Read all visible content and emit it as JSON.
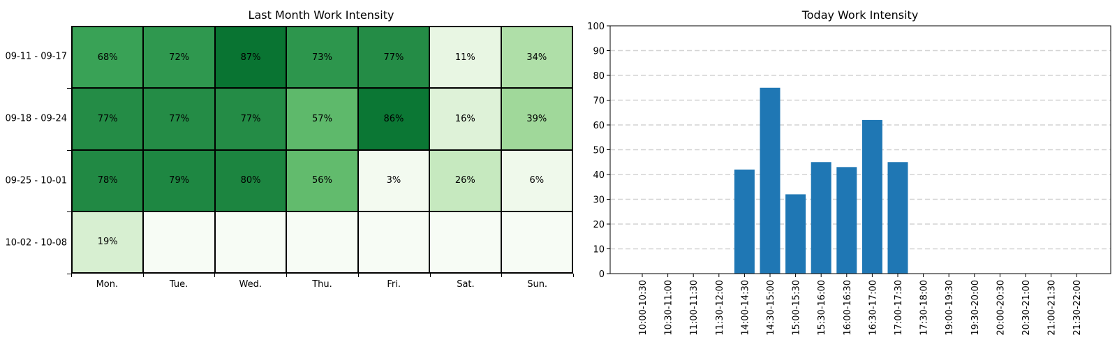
{
  "chart_data": [
    {
      "type": "heatmap",
      "title": "Last Month Work Intensity",
      "rows": [
        "09-11 - 09-17",
        "09-18 - 09-24",
        "09-25 - 10-01",
        "10-02 - 10-08"
      ],
      "columns": [
        "Mon.",
        "Tue.",
        "Wed.",
        "Thu.",
        "Fri.",
        "Sat.",
        "Sun."
      ],
      "values": [
        [
          68,
          72,
          87,
          73,
          77,
          11,
          34
        ],
        [
          77,
          77,
          77,
          57,
          86,
          16,
          39
        ],
        [
          78,
          79,
          80,
          56,
          3,
          26,
          6
        ],
        [
          19,
          null,
          null,
          null,
          null,
          null,
          null
        ]
      ],
      "value_suffix": "%",
      "colormap": "Greens"
    },
    {
      "type": "bar",
      "title": "Today Work Intensity",
      "categories": [
        "10:00-10:30",
        "10:30-11:00",
        "11:00-11:30",
        "11:30-12:00",
        "14:00-14:30",
        "14:30-15:00",
        "15:00-15:30",
        "15:30-16:00",
        "16:00-16:30",
        "16:30-17:00",
        "17:00-17:30",
        "17:30-18:00",
        "19:00-19:30",
        "19:30-20:00",
        "20:00-20:30",
        "20:30-21:00",
        "21:00-21:30",
        "21:30-22:00"
      ],
      "values": [
        0,
        0,
        0,
        0,
        42,
        75,
        32,
        45,
        43,
        62,
        45,
        0,
        0,
        0,
        0,
        0,
        0,
        0
      ],
      "ylim": [
        0,
        100
      ],
      "yticks": [
        0,
        10,
        20,
        30,
        40,
        50,
        60,
        70,
        80,
        90,
        100
      ],
      "grid": "horizontal-dashed",
      "bar_color": "#1f77b4"
    }
  ]
}
